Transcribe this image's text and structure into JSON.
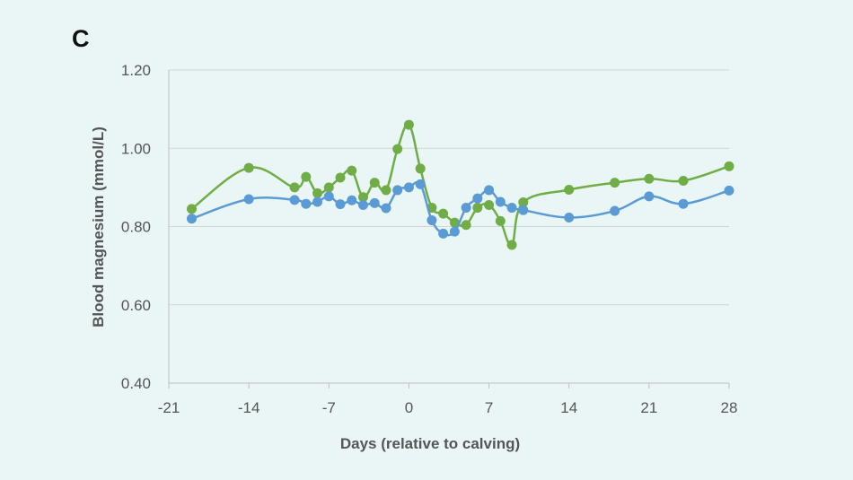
{
  "panel_label": "C",
  "chart_data": {
    "type": "line",
    "title": "",
    "xlabel": "Days (relative to calving)",
    "ylabel": "Blood magnesium (mmol/L)",
    "xlim": [
      -21,
      28
    ],
    "ylim": [
      0.4,
      1.2
    ],
    "xticks": [
      -21,
      -14,
      -7,
      0,
      7,
      14,
      21,
      28
    ],
    "xtick_labels": [
      "-21",
      "-14",
      "-7",
      "0",
      "7",
      "14",
      "21",
      "28"
    ],
    "yticks": [
      0.4,
      0.6,
      0.8,
      1.0,
      1.2
    ],
    "ytick_labels": [
      "0.40",
      "0.60",
      "0.80",
      "1.00",
      "1.20"
    ],
    "grid": "horizontal",
    "legend": "none",
    "series": [
      {
        "color": "#70ad47",
        "points": [
          [
            -19,
            0.845
          ],
          [
            -14,
            0.95
          ],
          [
            -10,
            0.9
          ],
          [
            -9,
            0.927
          ],
          [
            -8,
            0.885
          ],
          [
            -7,
            0.9
          ],
          [
            -6,
            0.925
          ],
          [
            -5,
            0.943
          ],
          [
            -4,
            0.875
          ],
          [
            -3,
            0.912
          ],
          [
            -2,
            0.893
          ],
          [
            -1,
            0.998
          ],
          [
            0,
            1.06
          ],
          [
            1,
            0.948
          ],
          [
            2,
            0.848
          ],
          [
            3,
            0.833
          ],
          [
            4,
            0.81
          ],
          [
            5,
            0.804
          ],
          [
            6,
            0.848
          ],
          [
            7,
            0.855
          ],
          [
            8,
            0.814
          ],
          [
            9,
            0.753
          ],
          [
            10,
            0.862
          ],
          [
            14,
            0.894
          ],
          [
            18,
            0.912
          ],
          [
            21,
            0.922
          ],
          [
            24,
            0.917
          ],
          [
            28,
            0.954
          ]
        ]
      },
      {
        "color": "#5b9bd5",
        "points": [
          [
            -19,
            0.82
          ],
          [
            -14,
            0.87
          ],
          [
            -10,
            0.868
          ],
          [
            -9,
            0.858
          ],
          [
            -8,
            0.863
          ],
          [
            -7,
            0.877
          ],
          [
            -6,
            0.857
          ],
          [
            -5,
            0.867
          ],
          [
            -4,
            0.855
          ],
          [
            -3,
            0.86
          ],
          [
            -2,
            0.847
          ],
          [
            -1,
            0.893
          ],
          [
            0,
            0.9
          ],
          [
            1,
            0.908
          ],
          [
            2,
            0.816
          ],
          [
            3,
            0.782
          ],
          [
            4,
            0.787
          ],
          [
            5,
            0.848
          ],
          [
            6,
            0.872
          ],
          [
            7,
            0.893
          ],
          [
            8,
            0.863
          ],
          [
            9,
            0.848
          ],
          [
            10,
            0.842
          ],
          [
            14,
            0.823
          ],
          [
            18,
            0.84
          ],
          [
            21,
            0.877
          ],
          [
            24,
            0.858
          ],
          [
            28,
            0.892
          ]
        ]
      }
    ]
  }
}
